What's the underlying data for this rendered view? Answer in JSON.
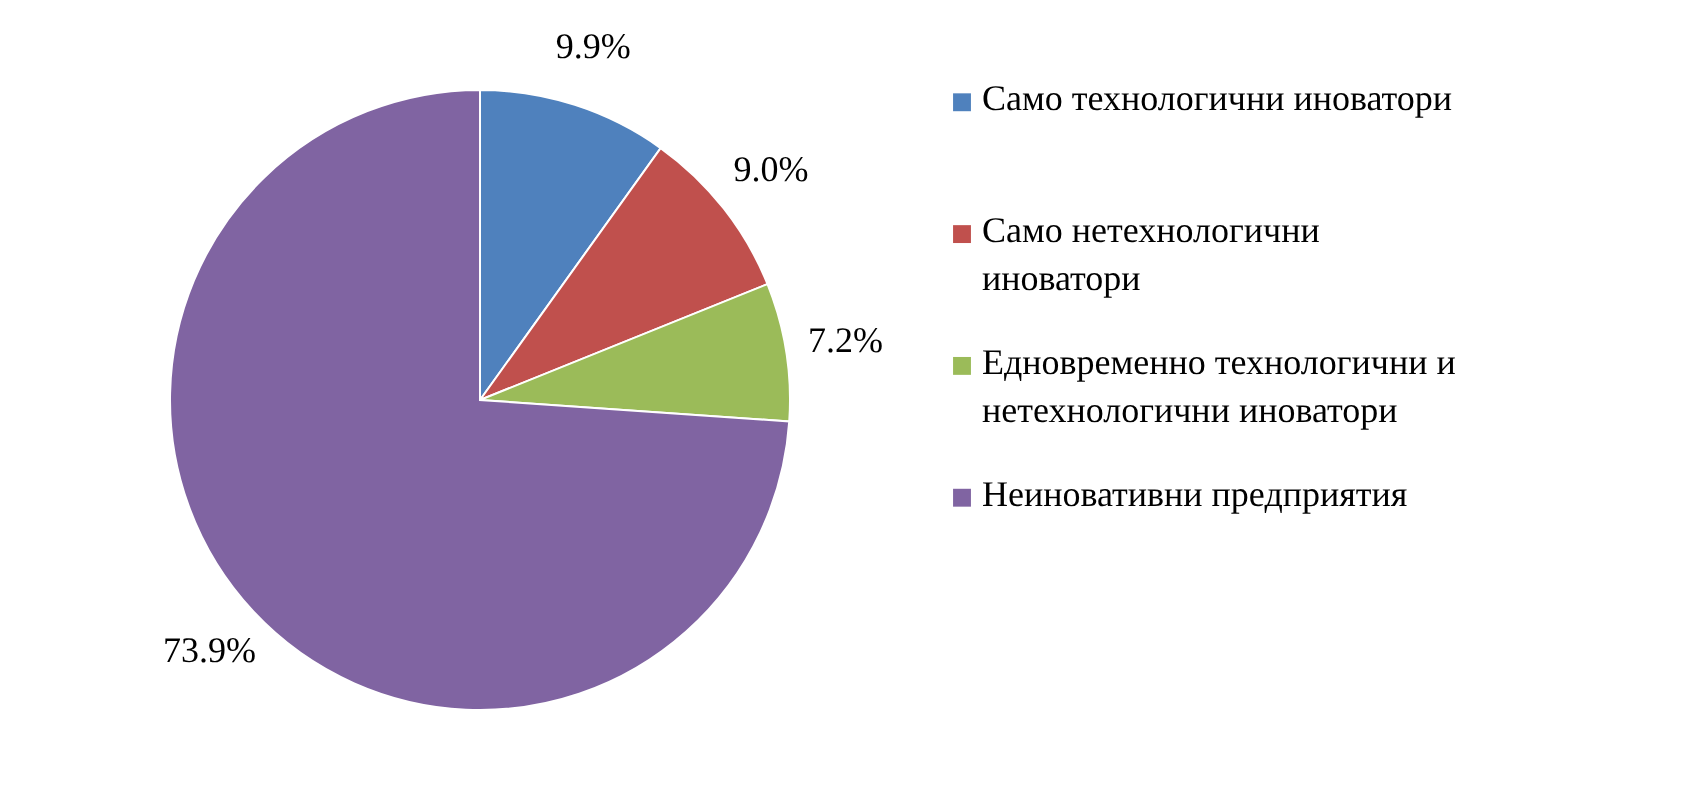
{
  "chart_data": {
    "type": "pie",
    "categories": [
      "Само технологични иноватори",
      "Само нетехнологични иноватори",
      "Едновременно технологични и нетехнологични иноватори",
      "Неиновативни предприятия"
    ],
    "values": [
      9.9,
      9.0,
      7.2,
      73.9
    ],
    "colors": [
      "#4f81bd",
      "#c0504d",
      "#9bbb59",
      "#8064a2"
    ],
    "value_labels": [
      "9.9%",
      "9.0%",
      "7.2%",
      "73.9%"
    ],
    "legend": "right"
  }
}
